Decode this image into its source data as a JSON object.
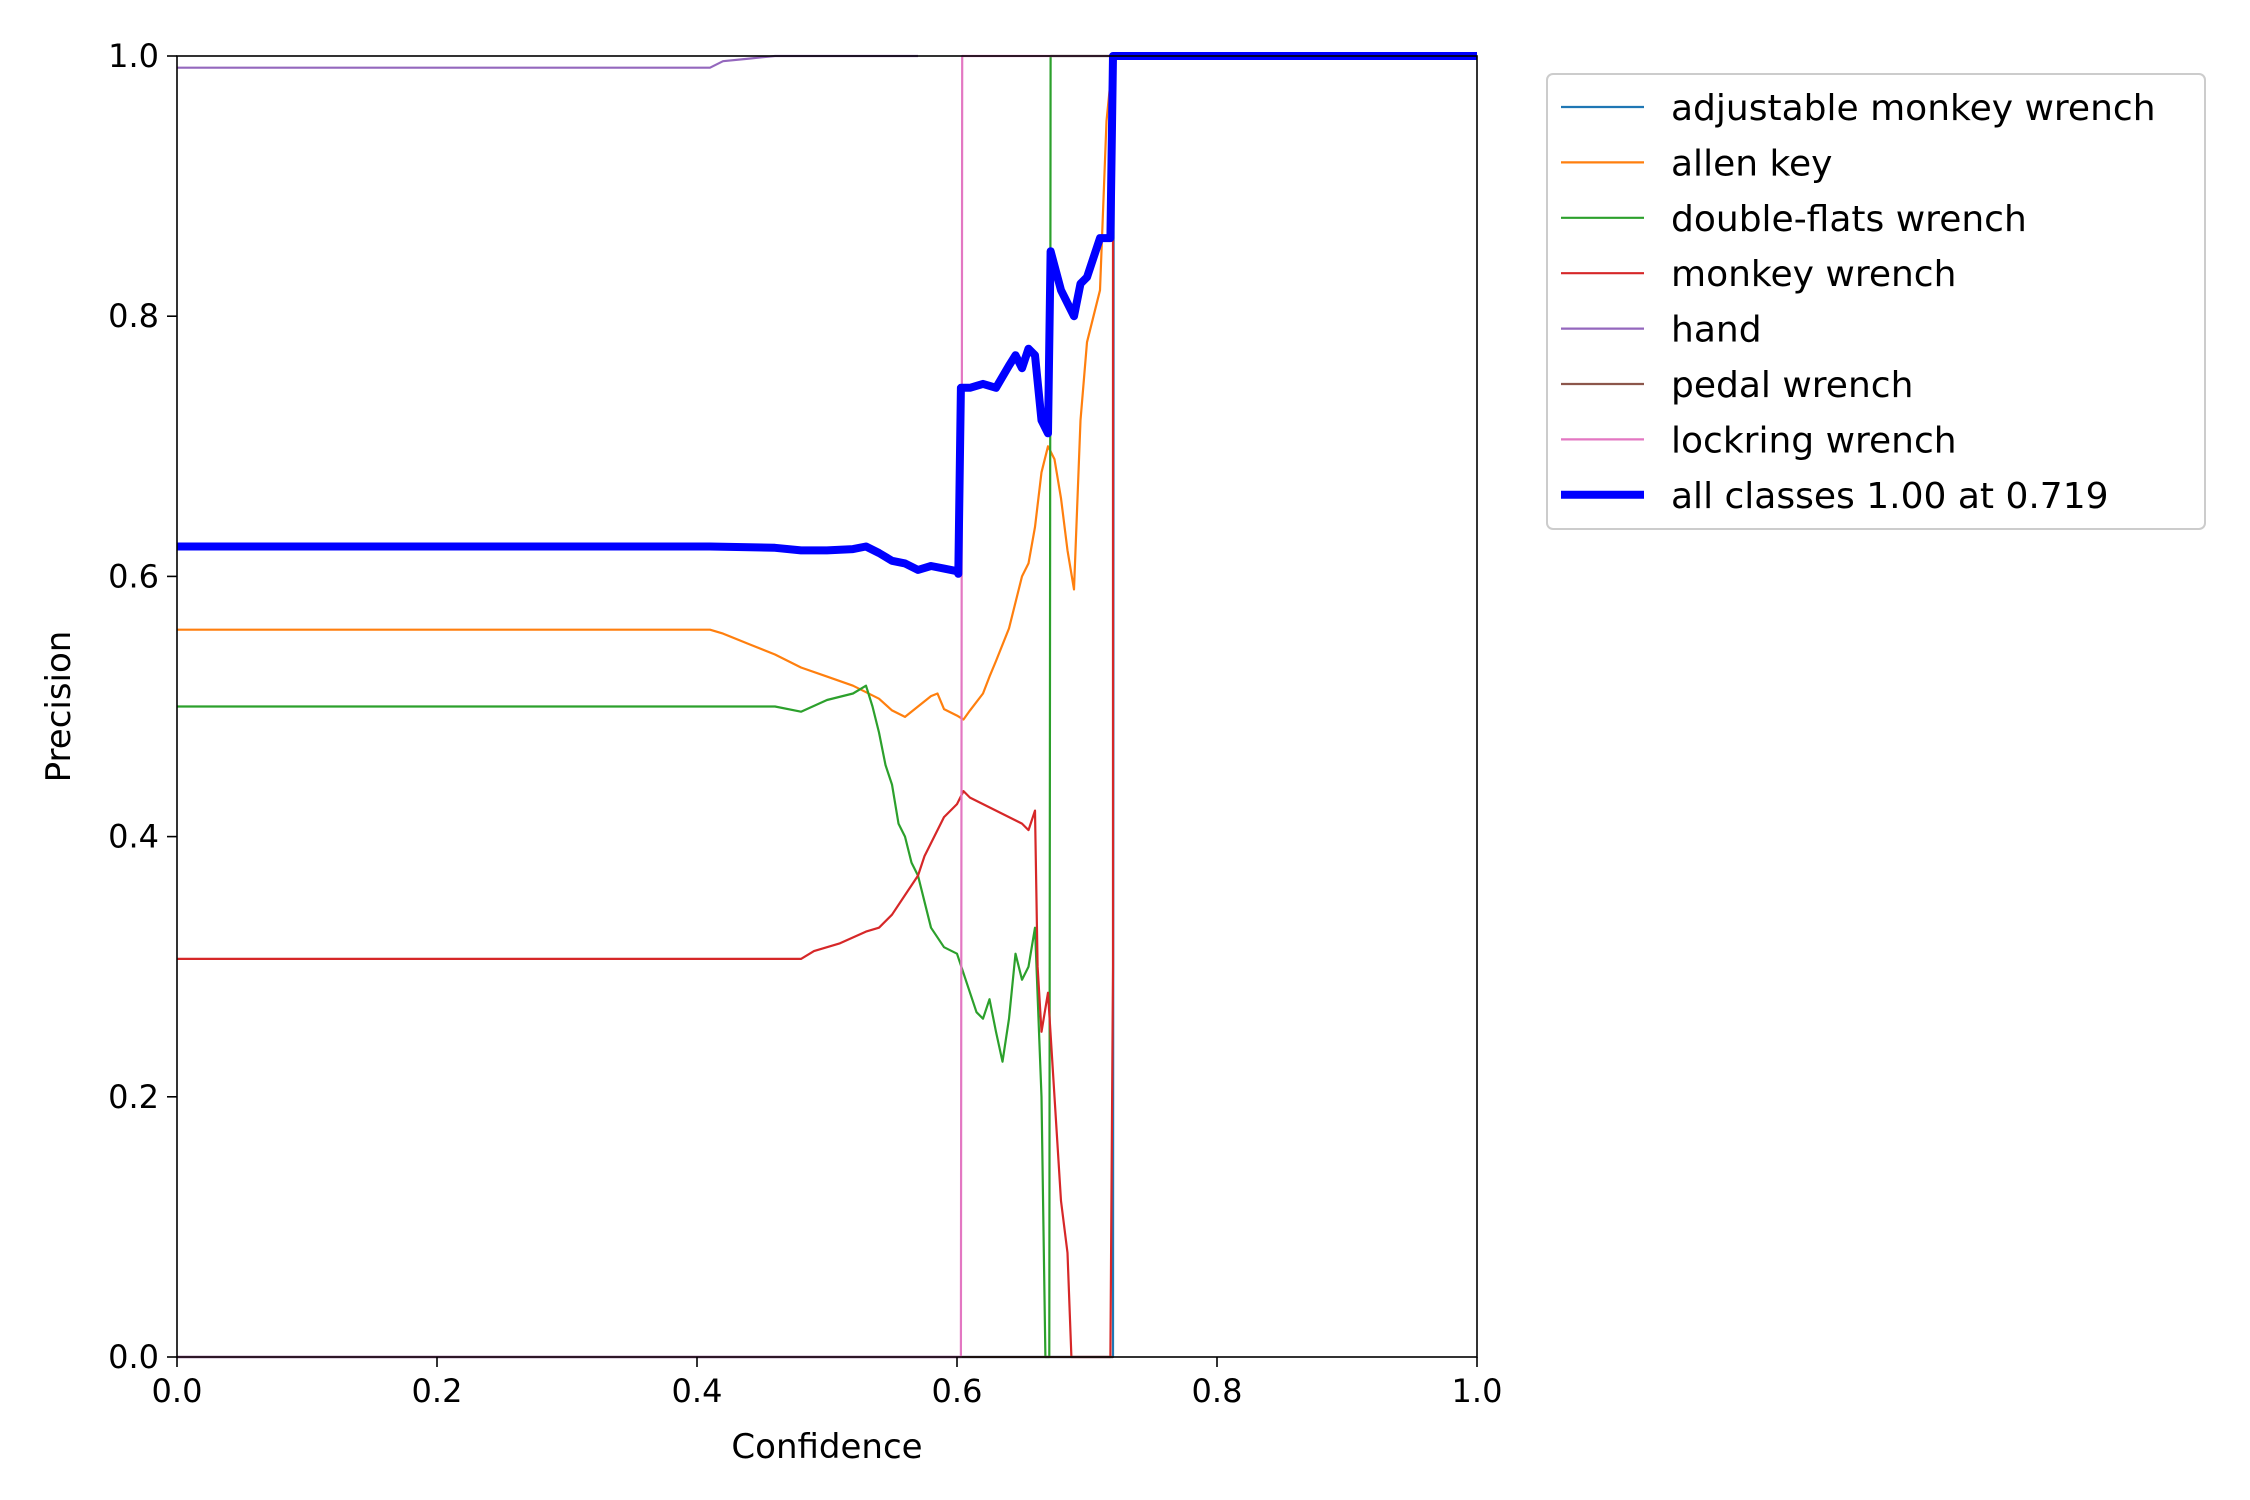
{
  "chart_data": {
    "type": "line",
    "title": "",
    "xlabel": "Confidence",
    "ylabel": "Precision",
    "xlim": [
      0,
      1
    ],
    "ylim": [
      0,
      1
    ],
    "x_ticks": [
      "0.0",
      "0.2",
      "0.4",
      "0.6",
      "0.8",
      "1.0"
    ],
    "y_ticks": [
      "0.0",
      "0.2",
      "0.4",
      "0.6",
      "0.8",
      "1.0"
    ],
    "grid": false,
    "legend_position": "outside-top-right",
    "series": [
      {
        "name": "adjustable monkey wrench",
        "color": "#1f77b4",
        "points": [
          [
            0.0,
            0.0
          ],
          [
            0.72,
            0.0
          ],
          [
            0.7205,
            1.0
          ],
          [
            1.0,
            1.0
          ]
        ]
      },
      {
        "name": "allen key",
        "color": "#ff7f0e",
        "points": [
          [
            0.0,
            0.559
          ],
          [
            0.41,
            0.559
          ],
          [
            0.42,
            0.556
          ],
          [
            0.44,
            0.548
          ],
          [
            0.46,
            0.54
          ],
          [
            0.48,
            0.53
          ],
          [
            0.5,
            0.523
          ],
          [
            0.52,
            0.516
          ],
          [
            0.54,
            0.506
          ],
          [
            0.55,
            0.497
          ],
          [
            0.56,
            0.492
          ],
          [
            0.57,
            0.5
          ],
          [
            0.58,
            0.508
          ],
          [
            0.585,
            0.51
          ],
          [
            0.59,
            0.498
          ],
          [
            0.6,
            0.493
          ],
          [
            0.605,
            0.49
          ],
          [
            0.61,
            0.497
          ],
          [
            0.62,
            0.51
          ],
          [
            0.625,
            0.523
          ],
          [
            0.63,
            0.535
          ],
          [
            0.64,
            0.56
          ],
          [
            0.645,
            0.58
          ],
          [
            0.65,
            0.6
          ],
          [
            0.655,
            0.61
          ],
          [
            0.66,
            0.638
          ],
          [
            0.665,
            0.68
          ],
          [
            0.67,
            0.7
          ],
          [
            0.675,
            0.69
          ],
          [
            0.68,
            0.66
          ],
          [
            0.685,
            0.62
          ],
          [
            0.69,
            0.59
          ],
          [
            0.695,
            0.72
          ],
          [
            0.7,
            0.78
          ],
          [
            0.71,
            0.82
          ],
          [
            0.715,
            0.95
          ],
          [
            0.72,
            1.0
          ],
          [
            1.0,
            1.0
          ]
        ]
      },
      {
        "name": "double-flats wrench",
        "color": "#2ca02c",
        "points": [
          [
            0.0,
            0.5
          ],
          [
            0.46,
            0.5
          ],
          [
            0.48,
            0.496
          ],
          [
            0.5,
            0.505
          ],
          [
            0.52,
            0.51
          ],
          [
            0.53,
            0.516
          ],
          [
            0.535,
            0.5
          ],
          [
            0.54,
            0.48
          ],
          [
            0.545,
            0.455
          ],
          [
            0.55,
            0.44
          ],
          [
            0.555,
            0.41
          ],
          [
            0.56,
            0.4
          ],
          [
            0.565,
            0.38
          ],
          [
            0.57,
            0.37
          ],
          [
            0.575,
            0.35
          ],
          [
            0.58,
            0.33
          ],
          [
            0.59,
            0.315
          ],
          [
            0.6,
            0.31
          ],
          [
            0.605,
            0.295
          ],
          [
            0.61,
            0.28
          ],
          [
            0.615,
            0.265
          ],
          [
            0.62,
            0.26
          ],
          [
            0.625,
            0.275
          ],
          [
            0.63,
            0.25
          ],
          [
            0.635,
            0.227
          ],
          [
            0.64,
            0.26
          ],
          [
            0.645,
            0.31
          ],
          [
            0.65,
            0.29
          ],
          [
            0.655,
            0.3
          ],
          [
            0.66,
            0.33
          ],
          [
            0.665,
            0.2
          ],
          [
            0.668,
            0.0
          ],
          [
            0.671,
            0.0
          ],
          [
            0.672,
            1.0
          ],
          [
            1.0,
            1.0
          ]
        ]
      },
      {
        "name": "monkey wrench",
        "color": "#d62728",
        "points": [
          [
            0.0,
            0.306
          ],
          [
            0.48,
            0.306
          ],
          [
            0.49,
            0.312
          ],
          [
            0.51,
            0.318
          ],
          [
            0.53,
            0.327
          ],
          [
            0.54,
            0.33
          ],
          [
            0.55,
            0.34
          ],
          [
            0.56,
            0.355
          ],
          [
            0.57,
            0.37
          ],
          [
            0.575,
            0.385
          ],
          [
            0.58,
            0.395
          ],
          [
            0.59,
            0.415
          ],
          [
            0.6,
            0.425
          ],
          [
            0.605,
            0.435
          ],
          [
            0.61,
            0.43
          ],
          [
            0.62,
            0.425
          ],
          [
            0.63,
            0.42
          ],
          [
            0.64,
            0.415
          ],
          [
            0.65,
            0.41
          ],
          [
            0.655,
            0.405
          ],
          [
            0.66,
            0.42
          ],
          [
            0.662,
            0.3
          ],
          [
            0.665,
            0.25
          ],
          [
            0.67,
            0.28
          ],
          [
            0.675,
            0.2
          ],
          [
            0.68,
            0.12
          ],
          [
            0.685,
            0.08
          ],
          [
            0.688,
            0.0
          ],
          [
            0.718,
            0.0
          ],
          [
            0.72,
            0.3
          ],
          [
            0.72,
            1.0
          ],
          [
            1.0,
            1.0
          ]
        ]
      },
      {
        "name": "hand",
        "color": "#9467bd",
        "points": [
          [
            0.0,
            0.991
          ],
          [
            0.41,
            0.991
          ],
          [
            0.42,
            0.996
          ],
          [
            0.44,
            0.998
          ],
          [
            0.46,
            1.0
          ],
          [
            0.57,
            1.0
          ]
        ]
      },
      {
        "name": "pedal wrench",
        "color": "#8c564b",
        "points": [
          [
            0.0,
            0.0
          ],
          [
            0.72,
            0.0
          ]
        ]
      },
      {
        "name": "lockring wrench",
        "color": "#e377c2",
        "points": [
          [
            0.0,
            0.0
          ],
          [
            0.603,
            0.0
          ],
          [
            0.604,
            1.0
          ],
          [
            1.0,
            1.0
          ]
        ]
      },
      {
        "name": "all classes 1.00 at 0.719",
        "color": "#0000ff",
        "bold": true,
        "points": [
          [
            0.0,
            0.623
          ],
          [
            0.41,
            0.623
          ],
          [
            0.46,
            0.622
          ],
          [
            0.48,
            0.62
          ],
          [
            0.5,
            0.62
          ],
          [
            0.52,
            0.621
          ],
          [
            0.53,
            0.623
          ],
          [
            0.54,
            0.618
          ],
          [
            0.55,
            0.612
          ],
          [
            0.56,
            0.61
          ],
          [
            0.57,
            0.605
          ],
          [
            0.58,
            0.608
          ],
          [
            0.59,
            0.606
          ],
          [
            0.6,
            0.604
          ],
          [
            0.601,
            0.602
          ],
          [
            0.603,
            0.745
          ],
          [
            0.61,
            0.745
          ],
          [
            0.62,
            0.748
          ],
          [
            0.63,
            0.745
          ],
          [
            0.64,
            0.762
          ],
          [
            0.645,
            0.77
          ],
          [
            0.65,
            0.76
          ],
          [
            0.655,
            0.775
          ],
          [
            0.66,
            0.77
          ],
          [
            0.665,
            0.72
          ],
          [
            0.67,
            0.71
          ],
          [
            0.672,
            0.85
          ],
          [
            0.68,
            0.82
          ],
          [
            0.69,
            0.8
          ],
          [
            0.695,
            0.825
          ],
          [
            0.7,
            0.83
          ],
          [
            0.71,
            0.86
          ],
          [
            0.718,
            0.86
          ],
          [
            0.72,
            1.0
          ],
          [
            1.0,
            1.0
          ]
        ]
      }
    ]
  }
}
